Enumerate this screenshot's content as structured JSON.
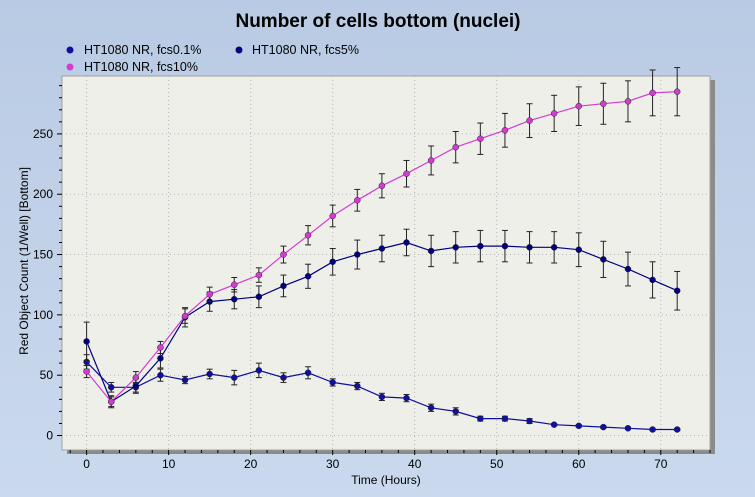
{
  "chart_data": {
    "type": "line",
    "title": "Number of cells bottom (nuclei)",
    "xlabel": "Time (Hours)",
    "ylabel": "Red Object Count (1/Well) [Bottom]",
    "xlim": [
      -3,
      76
    ],
    "ylim": [
      -12,
      298
    ],
    "xticks": [
      0,
      10,
      20,
      30,
      40,
      50,
      60,
      70
    ],
    "yticks": [
      0,
      50,
      100,
      150,
      200,
      250
    ],
    "x": [
      0,
      3,
      6,
      9,
      12,
      15,
      18,
      21,
      24,
      27,
      30,
      33,
      36,
      39,
      42,
      45,
      48,
      51,
      54,
      57,
      60,
      63,
      66,
      69,
      72
    ],
    "series": [
      {
        "name": "HT1080 NR, fcs0.1%",
        "color": "#0f0fa0",
        "values": [
          61,
          40,
          40,
          50,
          46,
          51,
          48,
          54,
          48,
          52,
          44,
          41,
          32,
          31,
          23,
          20,
          14,
          14,
          12,
          9,
          8,
          7,
          6,
          5,
          5
        ],
        "errors": [
          6,
          4,
          4,
          5,
          3,
          4,
          6,
          6,
          4,
          5,
          3,
          3,
          3,
          3,
          3,
          3,
          2,
          2,
          2,
          1,
          1,
          1,
          1,
          1,
          1
        ]
      },
      {
        "name": "HT1080 NR, fcs5%",
        "color": "#000080",
        "values": [
          78,
          28,
          41,
          64,
          98,
          111,
          113,
          115,
          124,
          132,
          144,
          150,
          155,
          160,
          153,
          156,
          157,
          157,
          156,
          156,
          154,
          146,
          138,
          129,
          120
        ],
        "errors": [
          16,
          5,
          6,
          8,
          8,
          8,
          8,
          9,
          9,
          10,
          11,
          12,
          11,
          11,
          13,
          13,
          13,
          13,
          13,
          13,
          14,
          15,
          14,
          15,
          16
        ]
      },
      {
        "name": "HT1080 NR, fcs10%",
        "color": "#d23cd2",
        "values": [
          53,
          28,
          48,
          73,
          99,
          117,
          125,
          133,
          150,
          166,
          182,
          195,
          207,
          217,
          228,
          239,
          246,
          253,
          261,
          267,
          273,
          275,
          277,
          284,
          285
        ],
        "errors": [
          5,
          4,
          5,
          5,
          6,
          6,
          6,
          6,
          7,
          8,
          9,
          9,
          10,
          11,
          12,
          13,
          13,
          14,
          14,
          15,
          16,
          17,
          17,
          19,
          20
        ]
      }
    ],
    "legend": {
      "position": "top-left",
      "markers": [
        "circle",
        "circle",
        "circle"
      ],
      "order": [
        0,
        2,
        1
      ]
    }
  }
}
